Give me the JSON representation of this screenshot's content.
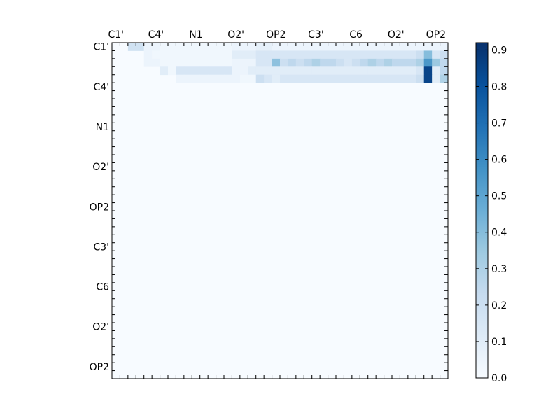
{
  "chart_data": {
    "type": "heatmap",
    "title": "",
    "xlabel": "",
    "ylabel": "",
    "x_tick_labels": [
      "C1'",
      "C4'",
      "N1",
      "O2'",
      "OP2",
      "C3'",
      "C6",
      "O2'",
      "OP2"
    ],
    "y_tick_labels": [
      "C1'",
      "C4'",
      "N1",
      "O2'",
      "OP2",
      "C3'",
      "C6",
      "O2'",
      "OP2"
    ],
    "grid": false,
    "colormap": "Blues",
    "colorbar": {
      "position": "right",
      "range": [
        0.0,
        0.92
      ],
      "tick_labels": [
        "0.0",
        "0.1",
        "0.2",
        "0.3",
        "0.4",
        "0.5",
        "0.6",
        "0.7",
        "0.8",
        "0.9"
      ],
      "colors": [
        "#f7fbff",
        "#deebf7",
        "#c6dbef",
        "#9ecae1",
        "#6baed6",
        "#4292c6",
        "#2171b5",
        "#08519c",
        "#08306b"
      ]
    },
    "matrix_size": 42,
    "values_note": "upper-triangular; background value 0.0",
    "cells": [
      [
        0,
        2,
        0.18
      ],
      [
        0,
        3,
        0.18
      ],
      [
        0,
        4,
        0.05
      ],
      [
        0,
        5,
        0.05
      ],
      [
        0,
        6,
        0.03
      ],
      [
        0,
        7,
        0.03
      ],
      [
        0,
        8,
        0.03
      ],
      [
        0,
        9,
        0.03
      ],
      [
        0,
        10,
        0.03
      ],
      [
        0,
        11,
        0.03
      ],
      [
        0,
        12,
        0.03
      ],
      [
        0,
        13,
        0.03
      ],
      [
        0,
        14,
        0.03
      ],
      [
        0,
        15,
        0.05
      ],
      [
        0,
        16,
        0.05
      ],
      [
        0,
        17,
        0.05
      ],
      [
        0,
        18,
        0.08
      ],
      [
        0,
        19,
        0.08
      ],
      [
        0,
        20,
        0.05
      ],
      [
        0,
        21,
        0.05
      ],
      [
        0,
        22,
        0.05
      ],
      [
        0,
        23,
        0.05
      ],
      [
        0,
        24,
        0.05
      ],
      [
        0,
        25,
        0.05
      ],
      [
        0,
        26,
        0.05
      ],
      [
        0,
        27,
        0.05
      ],
      [
        0,
        28,
        0.05
      ],
      [
        0,
        29,
        0.05
      ],
      [
        0,
        30,
        0.05
      ],
      [
        0,
        31,
        0.05
      ],
      [
        0,
        32,
        0.05
      ],
      [
        0,
        33,
        0.05
      ],
      [
        0,
        34,
        0.05
      ],
      [
        0,
        35,
        0.05
      ],
      [
        0,
        36,
        0.05
      ],
      [
        0,
        37,
        0.05
      ],
      [
        0,
        38,
        0.05
      ],
      [
        0,
        39,
        0.05
      ],
      [
        0,
        40,
        0.05
      ],
      [
        0,
        41,
        0.05
      ],
      [
        1,
        4,
        0.05
      ],
      [
        1,
        5,
        0.03
      ],
      [
        1,
        6,
        0.03
      ],
      [
        1,
        7,
        0.03
      ],
      [
        1,
        8,
        0.03
      ],
      [
        1,
        9,
        0.03
      ],
      [
        1,
        10,
        0.03
      ],
      [
        1,
        11,
        0.03
      ],
      [
        1,
        12,
        0.03
      ],
      [
        1,
        13,
        0.03
      ],
      [
        1,
        14,
        0.03
      ],
      [
        1,
        15,
        0.1
      ],
      [
        1,
        16,
        0.1
      ],
      [
        1,
        17,
        0.1
      ],
      [
        1,
        18,
        0.15
      ],
      [
        1,
        19,
        0.15
      ],
      [
        1,
        20,
        0.15
      ],
      [
        1,
        21,
        0.15
      ],
      [
        1,
        22,
        0.15
      ],
      [
        1,
        23,
        0.15
      ],
      [
        1,
        24,
        0.15
      ],
      [
        1,
        25,
        0.15
      ],
      [
        1,
        26,
        0.15
      ],
      [
        1,
        27,
        0.15
      ],
      [
        1,
        28,
        0.15
      ],
      [
        1,
        29,
        0.15
      ],
      [
        1,
        30,
        0.15
      ],
      [
        1,
        31,
        0.15
      ],
      [
        1,
        32,
        0.15
      ],
      [
        1,
        33,
        0.15
      ],
      [
        1,
        34,
        0.15
      ],
      [
        1,
        35,
        0.15
      ],
      [
        1,
        36,
        0.15
      ],
      [
        1,
        37,
        0.15
      ],
      [
        1,
        38,
        0.2
      ],
      [
        1,
        39,
        0.4
      ],
      [
        1,
        40,
        0.15
      ],
      [
        1,
        41,
        0.2
      ],
      [
        2,
        4,
        0.05
      ],
      [
        2,
        5,
        0.05
      ],
      [
        2,
        6,
        0.03
      ],
      [
        2,
        7,
        0.03
      ],
      [
        2,
        8,
        0.03
      ],
      [
        2,
        9,
        0.03
      ],
      [
        2,
        10,
        0.03
      ],
      [
        2,
        11,
        0.03
      ],
      [
        2,
        12,
        0.03
      ],
      [
        2,
        13,
        0.03
      ],
      [
        2,
        14,
        0.03
      ],
      [
        2,
        15,
        0.05
      ],
      [
        2,
        16,
        0.05
      ],
      [
        2,
        17,
        0.05
      ],
      [
        2,
        18,
        0.15
      ],
      [
        2,
        19,
        0.15
      ],
      [
        2,
        20,
        0.38
      ],
      [
        2,
        21,
        0.2
      ],
      [
        2,
        22,
        0.25
      ],
      [
        2,
        23,
        0.2
      ],
      [
        2,
        24,
        0.25
      ],
      [
        2,
        25,
        0.3
      ],
      [
        2,
        26,
        0.25
      ],
      [
        2,
        27,
        0.25
      ],
      [
        2,
        28,
        0.2
      ],
      [
        2,
        29,
        0.15
      ],
      [
        2,
        30,
        0.2
      ],
      [
        2,
        31,
        0.25
      ],
      [
        2,
        32,
        0.3
      ],
      [
        2,
        33,
        0.25
      ],
      [
        2,
        34,
        0.3
      ],
      [
        2,
        35,
        0.25
      ],
      [
        2,
        36,
        0.25
      ],
      [
        2,
        37,
        0.25
      ],
      [
        2,
        38,
        0.3
      ],
      [
        2,
        39,
        0.55
      ],
      [
        2,
        40,
        0.35
      ],
      [
        2,
        41,
        0.25
      ],
      [
        3,
        6,
        0.1
      ],
      [
        3,
        7,
        0.03
      ],
      [
        3,
        8,
        0.15
      ],
      [
        3,
        9,
        0.15
      ],
      [
        3,
        10,
        0.15
      ],
      [
        3,
        11,
        0.15
      ],
      [
        3,
        12,
        0.15
      ],
      [
        3,
        13,
        0.15
      ],
      [
        3,
        14,
        0.15
      ],
      [
        3,
        15,
        0.05
      ],
      [
        3,
        16,
        0.05
      ],
      [
        3,
        17,
        0.1
      ],
      [
        3,
        18,
        0.1
      ],
      [
        3,
        19,
        0.1
      ],
      [
        3,
        20,
        0.1
      ],
      [
        3,
        21,
        0.1
      ],
      [
        3,
        22,
        0.1
      ],
      [
        3,
        23,
        0.1
      ],
      [
        3,
        24,
        0.1
      ],
      [
        3,
        25,
        0.1
      ],
      [
        3,
        26,
        0.1
      ],
      [
        3,
        27,
        0.1
      ],
      [
        3,
        28,
        0.1
      ],
      [
        3,
        29,
        0.1
      ],
      [
        3,
        30,
        0.1
      ],
      [
        3,
        31,
        0.1
      ],
      [
        3,
        32,
        0.1
      ],
      [
        3,
        33,
        0.1
      ],
      [
        3,
        34,
        0.1
      ],
      [
        3,
        35,
        0.1
      ],
      [
        3,
        36,
        0.1
      ],
      [
        3,
        37,
        0.1
      ],
      [
        3,
        38,
        0.15
      ],
      [
        3,
        39,
        0.85
      ],
      [
        3,
        40,
        0.1
      ],
      [
        3,
        41,
        0.25
      ],
      [
        4,
        8,
        0.05
      ],
      [
        4,
        9,
        0.05
      ],
      [
        4,
        10,
        0.05
      ],
      [
        4,
        11,
        0.05
      ],
      [
        4,
        12,
        0.05
      ],
      [
        4,
        13,
        0.05
      ],
      [
        4,
        14,
        0.05
      ],
      [
        4,
        15,
        0.05
      ],
      [
        4,
        16,
        0.03
      ],
      [
        4,
        17,
        0.03
      ],
      [
        4,
        18,
        0.2
      ],
      [
        4,
        19,
        0.15
      ],
      [
        4,
        20,
        0.1
      ],
      [
        4,
        21,
        0.15
      ],
      [
        4,
        22,
        0.15
      ],
      [
        4,
        23,
        0.15
      ],
      [
        4,
        24,
        0.15
      ],
      [
        4,
        25,
        0.15
      ],
      [
        4,
        26,
        0.15
      ],
      [
        4,
        27,
        0.15
      ],
      [
        4,
        28,
        0.15
      ],
      [
        4,
        29,
        0.15
      ],
      [
        4,
        30,
        0.15
      ],
      [
        4,
        31,
        0.15
      ],
      [
        4,
        32,
        0.15
      ],
      [
        4,
        33,
        0.15
      ],
      [
        4,
        34,
        0.15
      ],
      [
        4,
        35,
        0.15
      ],
      [
        4,
        36,
        0.15
      ],
      [
        4,
        37,
        0.15
      ],
      [
        4,
        38,
        0.2
      ],
      [
        4,
        39,
        0.85
      ],
      [
        4,
        40,
        0.1
      ],
      [
        4,
        41,
        0.3
      ]
    ]
  }
}
